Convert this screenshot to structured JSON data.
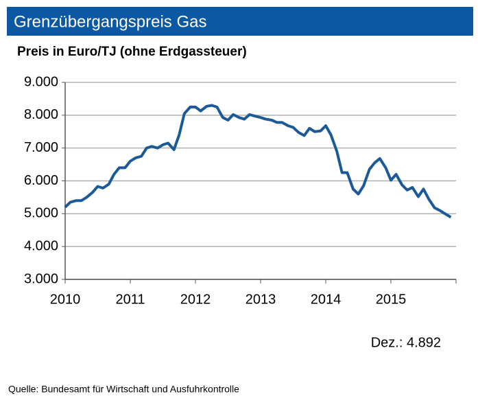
{
  "chart_data": {
    "type": "line",
    "title": "Grenzübergangspreis Gas",
    "subtitle": "Preis in Euro/TJ (ohne Erdgassteuer)",
    "annotation": "Dez.: 4.892",
    "source": "Quelle:  Bundesamt  für Wirtschaft und Ausfuhrkontrolle",
    "x": [
      2010,
      2010.08,
      2010.17,
      2010.25,
      2010.33,
      2010.42,
      2010.5,
      2010.58,
      2010.67,
      2010.75,
      2010.83,
      2010.92,
      2011,
      2011.08,
      2011.17,
      2011.25,
      2011.33,
      2011.42,
      2011.5,
      2011.58,
      2011.67,
      2011.75,
      2011.83,
      2011.92,
      2012,
      2012.08,
      2012.17,
      2012.25,
      2012.33,
      2012.42,
      2012.5,
      2012.58,
      2012.67,
      2012.75,
      2012.83,
      2012.92,
      2013,
      2013.08,
      2013.17,
      2013.25,
      2013.33,
      2013.42,
      2013.5,
      2013.58,
      2013.67,
      2013.75,
      2013.83,
      2013.92,
      2014,
      2014.08,
      2014.17,
      2014.25,
      2014.33,
      2014.42,
      2014.5,
      2014.58,
      2014.67,
      2014.75,
      2014.83,
      2014.92,
      2015,
      2015.08,
      2015.17,
      2015.25,
      2015.33,
      2015.42,
      2015.5,
      2015.58,
      2015.67,
      2015.75,
      2015.83,
      2015.92
    ],
    "series": [
      {
        "name": "Grenzübergangspreis",
        "color": "#1b5a97",
        "values": [
          5200,
          5350,
          5400,
          5400,
          5500,
          5650,
          5830,
          5780,
          5900,
          6200,
          6400,
          6400,
          6600,
          6700,
          6750,
          7000,
          7050,
          7000,
          7100,
          7150,
          6950,
          7400,
          8050,
          8250,
          8250,
          8130,
          8270,
          8300,
          8250,
          7930,
          7850,
          8020,
          7930,
          7880,
          8020,
          7970,
          7930,
          7880,
          7850,
          7780,
          7780,
          7680,
          7630,
          7480,
          7380,
          7600,
          7500,
          7520,
          7680,
          7400,
          6900,
          6250,
          6250,
          5750,
          5600,
          5850,
          6350,
          6550,
          6680,
          6400,
          6020,
          6200,
          5880,
          5720,
          5800,
          5520,
          5750,
          5450,
          5180,
          5100,
          5000,
          4892
        ]
      }
    ],
    "xlim": [
      2010,
      2016
    ],
    "xticks": [
      2010,
      2011,
      2012,
      2013,
      2014,
      2015
    ],
    "ylim": [
      3000,
      9000
    ],
    "yticks": [
      {
        "value": 3000,
        "label": "3.000"
      },
      {
        "value": 4000,
        "label": "4.000"
      },
      {
        "value": 5000,
        "label": "5.000"
      },
      {
        "value": 6000,
        "label": "6.000"
      },
      {
        "value": 7000,
        "label": "7.000"
      },
      {
        "value": 8000,
        "label": "8.000"
      },
      {
        "value": 9000,
        "label": "9.000"
      }
    ],
    "grid": true
  }
}
